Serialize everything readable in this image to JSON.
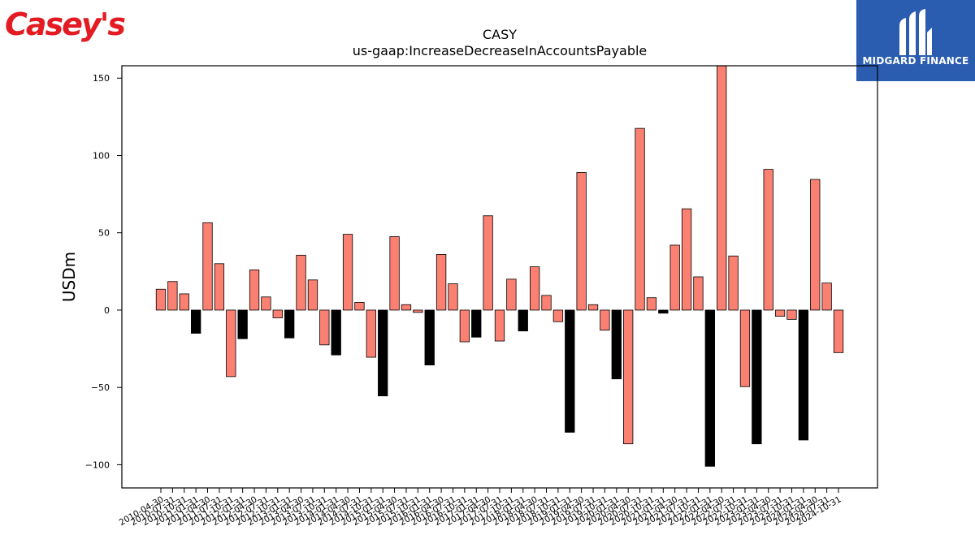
{
  "logos": {
    "left_text": "Casey's",
    "right_text": "MIDGARD FINANCE"
  },
  "colors": {
    "positive": "#fa8072",
    "negative": "#000000",
    "edge": "#000000",
    "casey_red": "#e41b23",
    "midgard_blue": "#2a5db0"
  },
  "chart_data": {
    "type": "bar",
    "title": "CASY",
    "subtitle": "us-gaap:IncreaseDecreaseInAccountsPayable",
    "xlabel": "",
    "ylabel": "USDm",
    "ylim": [
      -115,
      158
    ],
    "yticks": [
      -100,
      -50,
      0,
      50,
      100,
      150
    ],
    "yticklabels": [
      "−100",
      "−50",
      "0",
      "50",
      "100",
      "150"
    ],
    "grid": false,
    "categories": [
      "2010-04-30",
      "2010-07-31",
      "2010-10-31",
      "2011-01-31",
      "2011-04-30",
      "2011-07-31",
      "2011-10-31",
      "2012-01-31",
      "2012-04-30",
      "2012-07-31",
      "2012-10-31",
      "2013-01-31",
      "2013-04-30",
      "2013-07-31",
      "2013-10-31",
      "2014-01-31",
      "2014-04-30",
      "2014-07-31",
      "2014-10-31",
      "2015-01-31",
      "2015-04-30",
      "2015-07-31",
      "2015-10-31",
      "2016-01-31",
      "2016-04-30",
      "2016-07-31",
      "2016-10-31",
      "2017-01-31",
      "2017-04-30",
      "2017-07-31",
      "2017-10-31",
      "2018-01-31",
      "2018-04-30",
      "2018-07-31",
      "2018-10-31",
      "2019-01-31",
      "2019-04-30",
      "2019-07-31",
      "2019-10-31",
      "2020-01-31",
      "2020-04-30",
      "2020-07-31",
      "2020-10-31",
      "2021-01-31",
      "2021-04-30",
      "2021-07-31",
      "2021-10-31",
      "2022-01-31",
      "2022-04-30",
      "2022-07-31",
      "2022-10-31",
      "2023-01-31",
      "2023-04-30",
      "2023-07-31",
      "2023-10-31",
      "2024-01-31",
      "2024-04-30",
      "2024-07-31",
      "2024-10-31"
    ],
    "values": [
      13.5,
      18.5,
      10.5,
      -15,
      56.5,
      30,
      -43,
      -18.5,
      26,
      8.5,
      -5,
      -18,
      35.5,
      19.5,
      -22.5,
      -29,
      49,
      5,
      -30.5,
      -55.5,
      47.5,
      3.5,
      -1.5,
      -35.5,
      36,
      17,
      -20.5,
      -17.5,
      61,
      -20,
      20,
      -13.5,
      28,
      9.5,
      -7.5,
      -79,
      89,
      3.5,
      -13,
      -44.5,
      -86.5,
      117.5,
      8,
      -2,
      42,
      65.5,
      21.5,
      -101,
      160,
      35,
      -49.5,
      -86.5,
      91,
      -4,
      -6,
      -84,
      84.5,
      17.5,
      -27.5
    ],
    "black_bar_indices": [
      3,
      7,
      11,
      15,
      19,
      23,
      27,
      31,
      35,
      39,
      43,
      47,
      51,
      55
    ]
  }
}
